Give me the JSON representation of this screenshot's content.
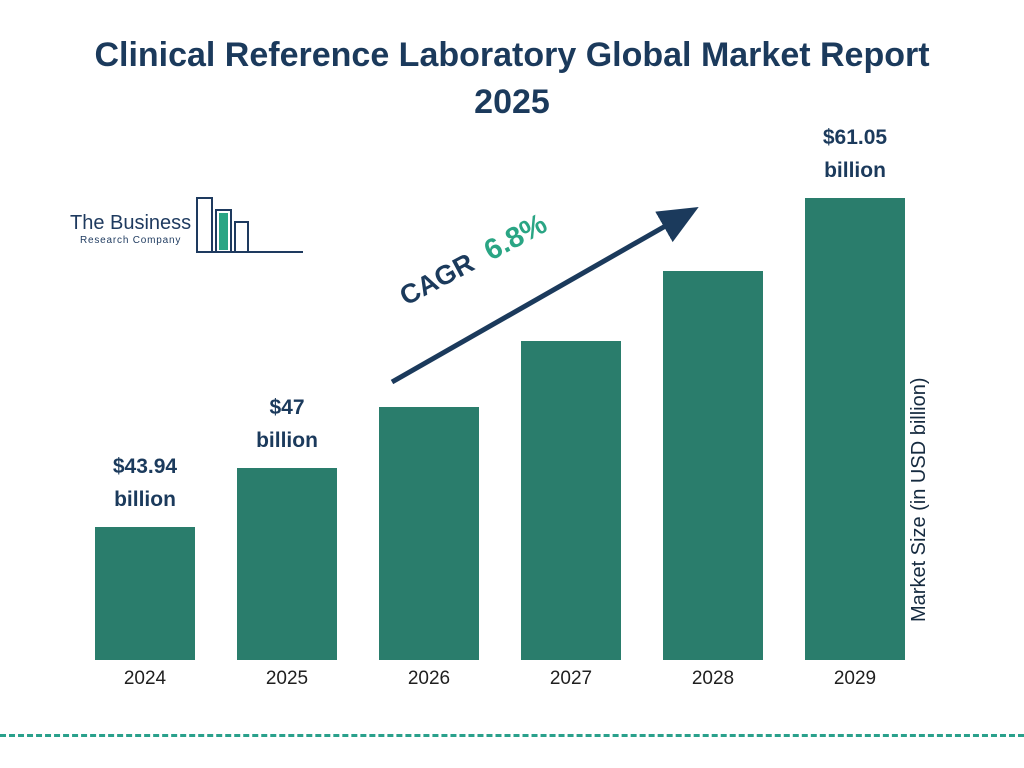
{
  "title": "Clinical Reference Laboratory Global Market Report 2025",
  "logo": {
    "line1": "The Business",
    "line2": "Research Company"
  },
  "colors": {
    "navy": "#1b3a5c",
    "bar_teal": "#2a7d6c",
    "accent_green": "#2aa584",
    "dashed_line": "#2aa18c",
    "tick_text": "#1f1f1f"
  },
  "chart_data": {
    "type": "bar",
    "title": "Clinical Reference Laboratory Global Market Report 2025",
    "categories": [
      "2024",
      "2025",
      "2026",
      "2027",
      "2028",
      "2029"
    ],
    "values": [
      43.94,
      47,
      50.2,
      53.6,
      57.25,
      61.05
    ],
    "bar_labels": [
      [
        "$43.94",
        "billion"
      ],
      [
        "$47",
        "billion"
      ],
      null,
      null,
      null,
      [
        "$61.05",
        "billion"
      ]
    ],
    "labeled_values": {
      "2024": "$43.94 billion",
      "2025": "$47 billion",
      "2029": "$61.05 billion"
    },
    "xlabel": "",
    "ylabel": "Market Size (in USD billion)",
    "cagr": {
      "label": "CAGR",
      "value": "6.8%"
    },
    "bar_color": "#2a7d6c",
    "value_range_drawn": [
      37,
      62
    ],
    "grid": false,
    "legend": false
  }
}
